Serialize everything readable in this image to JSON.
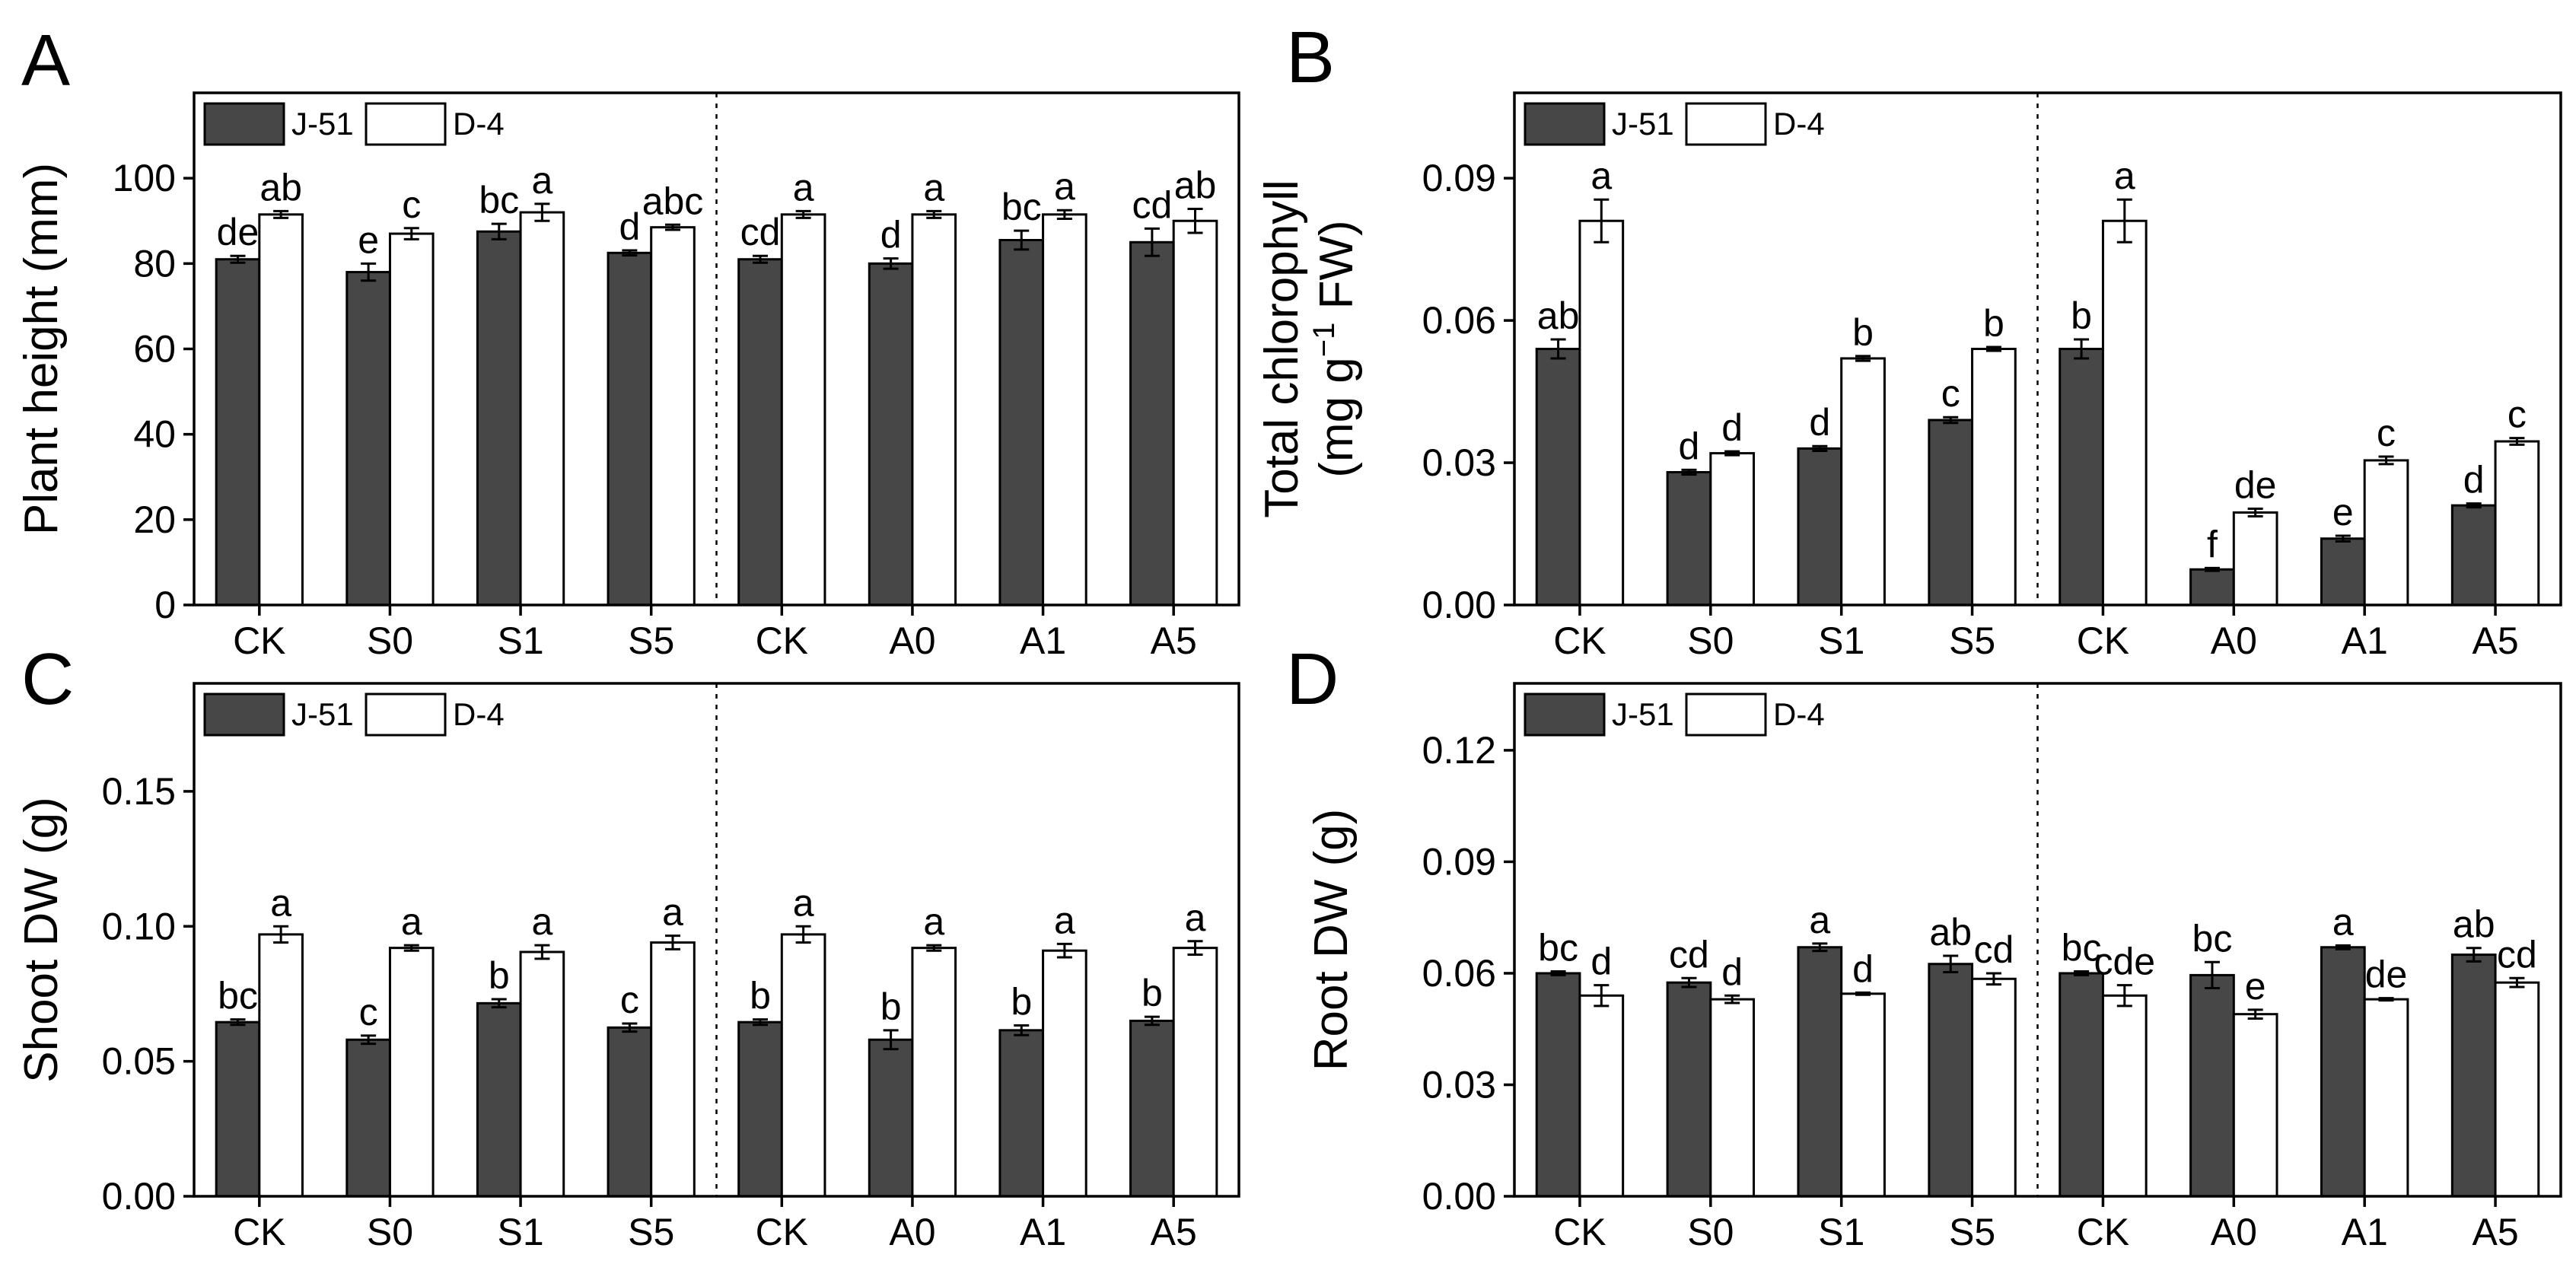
{
  "chart_data": [
    {
      "type": "bar",
      "panel": "A",
      "ylabel": "Plant height (mm)",
      "ylim": [
        0,
        120
      ],
      "yticks": [
        0,
        20,
        40,
        60,
        80,
        100
      ],
      "ytick_labels": [
        "0",
        "20",
        "40",
        "60",
        "80",
        "100"
      ],
      "categories": [
        "CK",
        "S0",
        "S1",
        "S5",
        "CK",
        "A0",
        "A1",
        "A5"
      ],
      "legend": [
        "J-51",
        "D-4"
      ],
      "series": [
        {
          "name": "J-51",
          "values": [
            81,
            78,
            87.5,
            82.5,
            81,
            80,
            85.5,
            85
          ],
          "errors": [
            0.8,
            2.0,
            1.8,
            0.6,
            0.8,
            1.2,
            2.2,
            3.2
          ],
          "labels": [
            "de",
            "e",
            "bc",
            "d",
            "cd",
            "d",
            "bc",
            "cd"
          ]
        },
        {
          "name": "D-4",
          "values": [
            91.5,
            87,
            92,
            88.5,
            91.5,
            91.5,
            91.5,
            90
          ],
          "errors": [
            0.8,
            1.3,
            2.0,
            0.6,
            0.8,
            0.8,
            1.0,
            2.8
          ],
          "labels": [
            "ab",
            "c",
            "a",
            "abc",
            "a",
            "a",
            "a",
            "ab"
          ]
        }
      ]
    },
    {
      "type": "bar",
      "panel": "B",
      "ylabel": "Total chlorophyll",
      "ylabel2_pre": "(mg g",
      "ylabel2_sup": "−1",
      "ylabel2_post": " FW)",
      "ylim": [
        0,
        0.108
      ],
      "yticks": [
        0,
        0.03,
        0.06,
        0.09
      ],
      "ytick_labels": [
        "0.00",
        "0.03",
        "0.06",
        "0.09"
      ],
      "categories": [
        "CK",
        "S0",
        "S1",
        "S5",
        "CK",
        "A0",
        "A1",
        "A5"
      ],
      "legend": [
        "J-51",
        "D-4"
      ],
      "series": [
        {
          "name": "J-51",
          "values": [
            0.054,
            0.028,
            0.033,
            0.039,
            0.054,
            0.0075,
            0.014,
            0.021
          ],
          "errors": [
            0.002,
            0.0005,
            0.0005,
            0.0006,
            0.002,
            0.0003,
            0.0006,
            0.0004
          ],
          "labels": [
            "ab",
            "d",
            "d",
            "c",
            "b",
            "f",
            "e",
            "d"
          ]
        },
        {
          "name": "D-4",
          "values": [
            0.081,
            0.032,
            0.052,
            0.054,
            0.081,
            0.0195,
            0.0305,
            0.0345
          ],
          "errors": [
            0.0045,
            0.0004,
            0.0005,
            0.0004,
            0.0045,
            0.0008,
            0.0008,
            0.0007
          ],
          "labels": [
            "a",
            "d",
            "b",
            "b",
            "a",
            "de",
            "c",
            "c"
          ]
        }
      ]
    },
    {
      "type": "bar",
      "panel": "C",
      "ylabel": "Shoot DW (g)",
      "ylim": [
        0,
        0.19
      ],
      "yticks": [
        0,
        0.05,
        0.1,
        0.15
      ],
      "ytick_labels": [
        "0.00",
        "0.05",
        "0.10",
        "0.15"
      ],
      "categories": [
        "CK",
        "S0",
        "S1",
        "S5",
        "CK",
        "A0",
        "A1",
        "A5"
      ],
      "legend": [
        "J-51",
        "D-4"
      ],
      "series": [
        {
          "name": "J-51",
          "values": [
            0.0645,
            0.058,
            0.0715,
            0.0625,
            0.0645,
            0.058,
            0.0615,
            0.065
          ],
          "errors": [
            0.001,
            0.0015,
            0.0015,
            0.0015,
            0.001,
            0.0035,
            0.0018,
            0.0015
          ],
          "labels": [
            "bc",
            "c",
            "b",
            "c",
            "b",
            "b",
            "b",
            "b"
          ]
        },
        {
          "name": "D-4",
          "values": [
            0.097,
            0.092,
            0.0905,
            0.094,
            0.097,
            0.092,
            0.091,
            0.092
          ],
          "errors": [
            0.003,
            0.001,
            0.0025,
            0.0025,
            0.003,
            0.001,
            0.0025,
            0.0025
          ],
          "labels": [
            "a",
            "a",
            "a",
            "a",
            "a",
            "a",
            "a",
            "a"
          ]
        }
      ]
    },
    {
      "type": "bar",
      "panel": "D",
      "ylabel": "Root DW (g)",
      "ylim": [
        0,
        0.138
      ],
      "yticks": [
        0,
        0.03,
        0.06,
        0.09,
        0.12
      ],
      "ytick_labels": [
        "0.00",
        "0.03",
        "0.06",
        "0.09",
        "0.12"
      ],
      "categories": [
        "CK",
        "S0",
        "S1",
        "S5",
        "CK",
        "A0",
        "A1",
        "A5"
      ],
      "legend": [
        "J-51",
        "D-4"
      ],
      "series": [
        {
          "name": "J-51",
          "values": [
            0.06,
            0.0575,
            0.067,
            0.0625,
            0.06,
            0.0595,
            0.067,
            0.065
          ],
          "errors": [
            0.0005,
            0.0012,
            0.001,
            0.0022,
            0.0005,
            0.0035,
            0.0005,
            0.0018
          ],
          "labels": [
            "bc",
            "cd",
            "a",
            "ab",
            "bc",
            "bc",
            "a",
            "ab"
          ]
        },
        {
          "name": "D-4",
          "values": [
            0.054,
            0.053,
            0.0545,
            0.0585,
            0.054,
            0.049,
            0.053,
            0.0575
          ],
          "errors": [
            0.0028,
            0.001,
            0.0003,
            0.0015,
            0.0028,
            0.0012,
            0.0003,
            0.0012
          ],
          "labels": [
            "d",
            "d",
            "d",
            "cd",
            "cde",
            "e",
            "de",
            "cd"
          ]
        }
      ]
    }
  ],
  "colors": {
    "j51_fill": "#474747",
    "d4_fill": "#ffffff",
    "stroke": "#000000"
  }
}
